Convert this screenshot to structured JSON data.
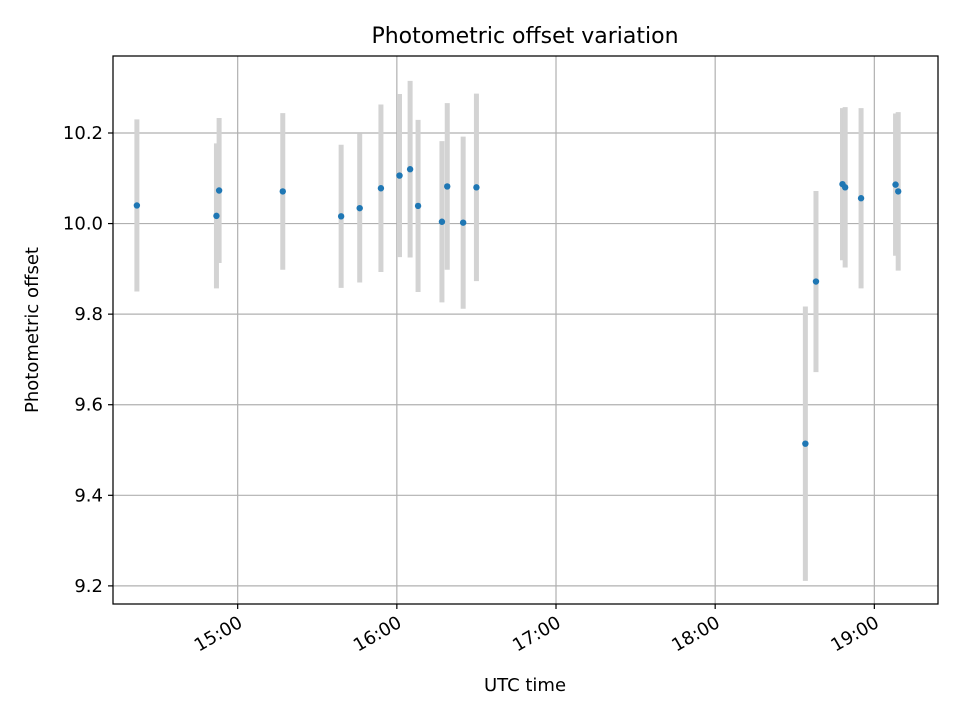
{
  "chart_data": {
    "type": "scatter",
    "title": "Photometric offset variation",
    "xlabel": "UTC time",
    "ylabel": "Photometric offset",
    "x_tick_labels": [
      "15:00",
      "16:00",
      "17:00",
      "18:00",
      "19:00"
    ],
    "y_ticks": [
      9.2,
      9.4,
      9.6,
      9.8,
      10.0,
      10.2
    ],
    "y_tick_labels": [
      "9.2",
      "9.4",
      "9.6",
      "9.8",
      "10.0",
      "10.2"
    ],
    "xlim": [
      "14:13",
      "19:24"
    ],
    "ylim": [
      9.16,
      10.37
    ],
    "grid": true,
    "point_color": "#1f77b4",
    "errorbar_color": "#d3d3d3",
    "points": [
      {
        "time": "14:22",
        "y": 10.04,
        "err": 0.19
      },
      {
        "time": "14:52",
        "y": 10.017,
        "err": 0.16
      },
      {
        "time": "14:53",
        "y": 10.073,
        "err": 0.16
      },
      {
        "time": "15:17",
        "y": 10.071,
        "err": 0.173
      },
      {
        "time": "15:39",
        "y": 10.016,
        "err": 0.158
      },
      {
        "time": "15:46",
        "y": 10.034,
        "err": 0.164
      },
      {
        "time": "15:54",
        "y": 10.078,
        "err": 0.185
      },
      {
        "time": "16:01",
        "y": 10.106,
        "err": 0.18
      },
      {
        "time": "16:05",
        "y": 10.12,
        "err": 0.195
      },
      {
        "time": "16:08",
        "y": 10.039,
        "err": 0.19
      },
      {
        "time": "16:17",
        "y": 10.004,
        "err": 0.178
      },
      {
        "time": "16:19",
        "y": 10.082,
        "err": 0.184
      },
      {
        "time": "16:25",
        "y": 10.002,
        "err": 0.19
      },
      {
        "time": "16:30",
        "y": 10.08,
        "err": 0.207
      },
      {
        "time": "18:34",
        "y": 9.514,
        "err": 0.303
      },
      {
        "time": "18:38",
        "y": 9.872,
        "err": 0.2
      },
      {
        "time": "18:48",
        "y": 10.087,
        "err": 0.168
      },
      {
        "time": "18:49",
        "y": 10.08,
        "err": 0.177
      },
      {
        "time": "18:55",
        "y": 10.056,
        "err": 0.199
      },
      {
        "time": "19:08",
        "y": 10.086,
        "err": 0.157
      },
      {
        "time": "19:09",
        "y": 10.071,
        "err": 0.175
      }
    ]
  }
}
